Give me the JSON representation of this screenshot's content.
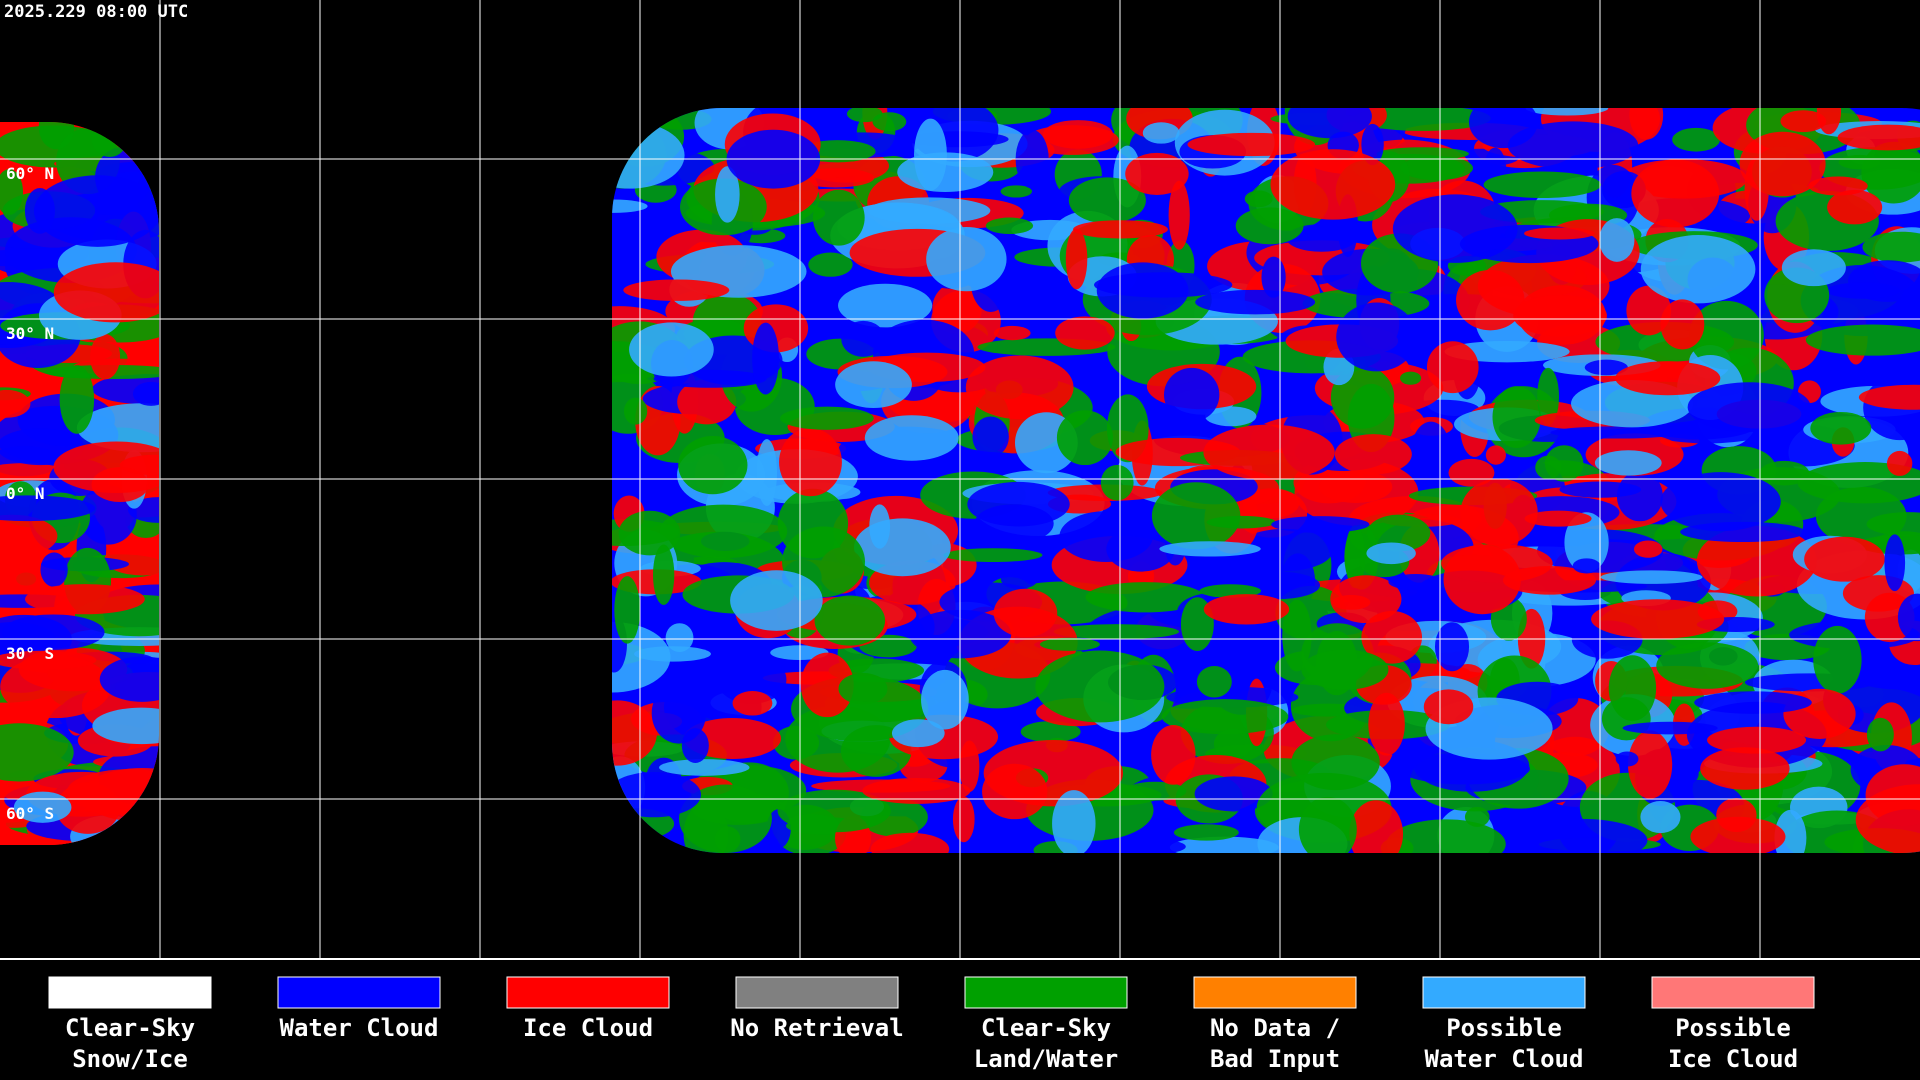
{
  "header": {
    "timestamp": "2025.229 08:00 UTC"
  },
  "latitude_labels": [
    "60° N",
    "30° N",
    "0° N",
    "30° S",
    "60° S"
  ],
  "legend": [
    {
      "label": [
        "Clear-Sky",
        "Snow/Ice"
      ],
      "color": "#ffffff"
    },
    {
      "label": [
        "Water Cloud"
      ],
      "color": "#0000ff"
    },
    {
      "label": [
        "Ice Cloud"
      ],
      "color": "#ff0000"
    },
    {
      "label": [
        "No Retrieval"
      ],
      "color": "#808080"
    },
    {
      "label": [
        "Clear-Sky",
        "Land/Water"
      ],
      "color": "#00a000"
    },
    {
      "label": [
        "No Data /",
        "Bad Input"
      ],
      "color": "#ff8000"
    },
    {
      "label": [
        "Possible",
        "Water Cloud"
      ],
      "color": "#33aaff"
    },
    {
      "label": [
        "Possible",
        "Ice Cloud"
      ],
      "color": "#ff7777"
    }
  ]
}
